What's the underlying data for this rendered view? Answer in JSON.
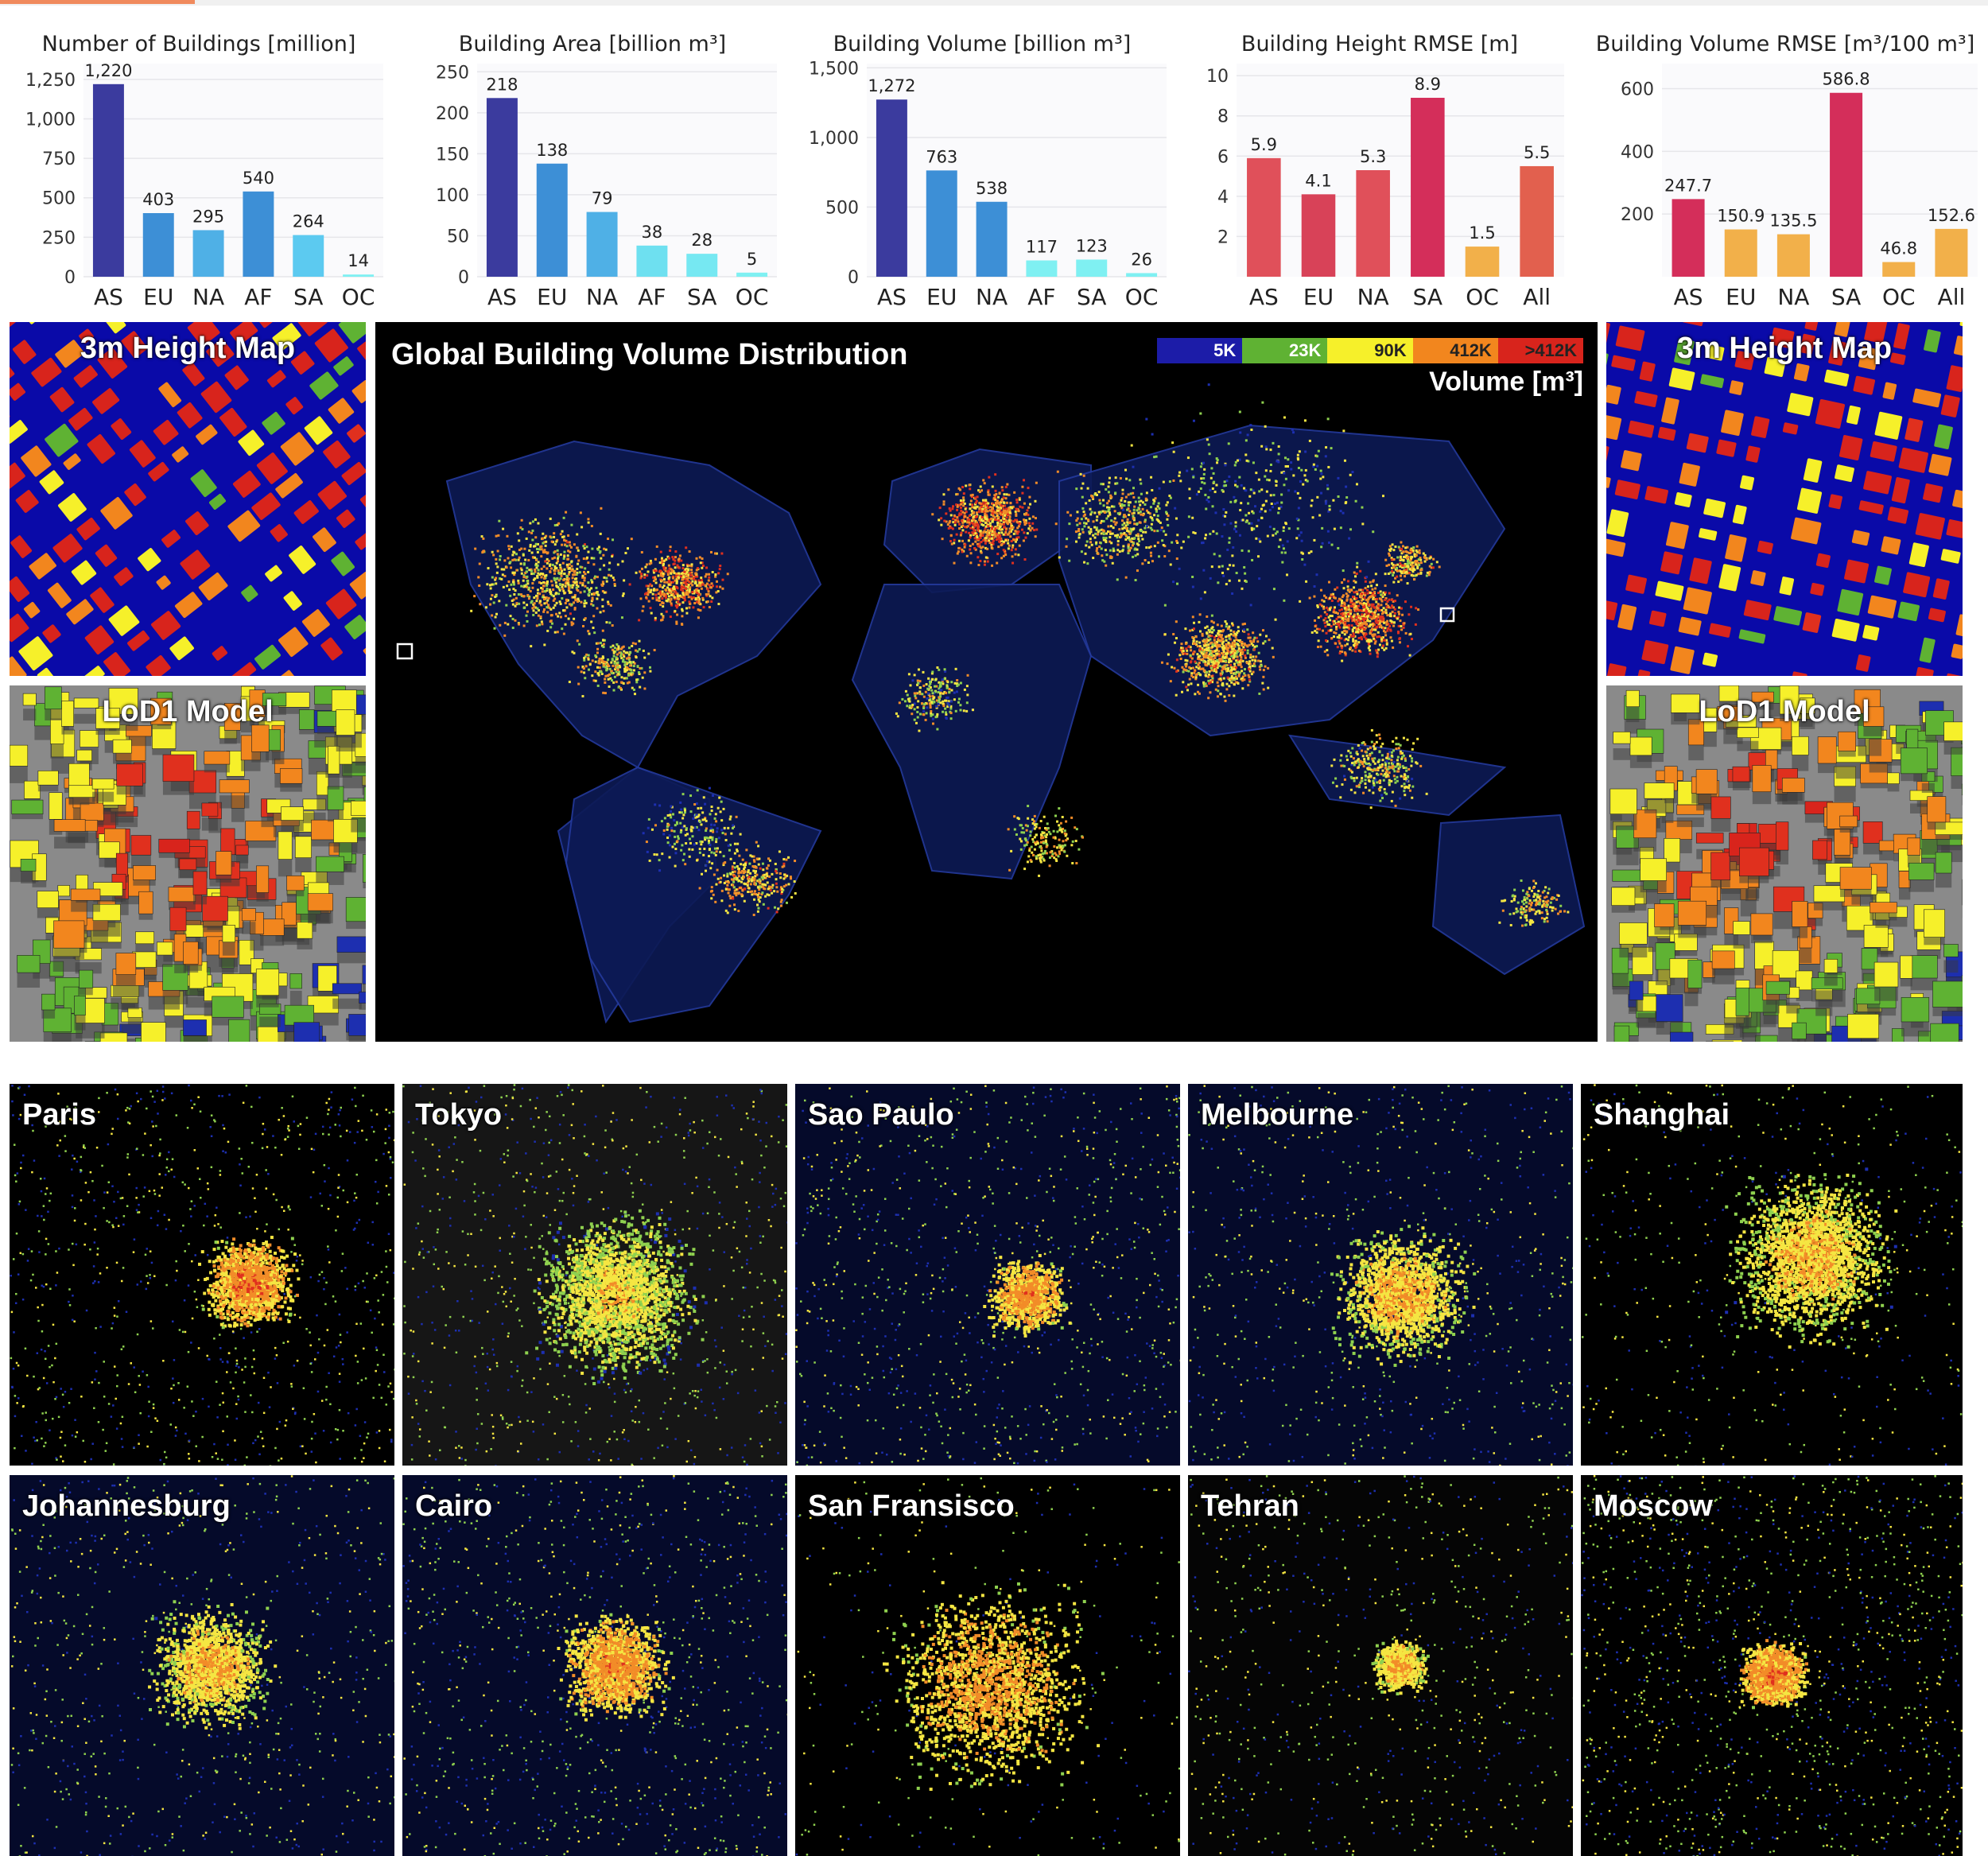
{
  "colors": {
    "dark_blue": "#3b3b9e",
    "mid_blue": "#3d8fd6",
    "light_blue": "#5ccaf0",
    "cyan": "#7ff0f2",
    "crimson": "#d42e5a",
    "red": "#e0505a",
    "orange_red": "#e2604e",
    "amber": "#f2b04a",
    "grid": "#e6e6ea",
    "plot_bg": "#fafafc"
  },
  "chart_data": [
    {
      "type": "bar",
      "title": "Number of Buildings [million]",
      "categories": [
        "AS",
        "EU",
        "NA",
        "AF",
        "SA",
        "OC"
      ],
      "values": [
        1220,
        403,
        295,
        540,
        264,
        14
      ],
      "labels": [
        "1,220",
        "403",
        "295",
        "540",
        "264",
        "14"
      ],
      "colors": [
        "#3b3b9e",
        "#3d8fd6",
        "#4fb0e6",
        "#3d8fd6",
        "#5ccaf0",
        "#7ff0f2"
      ],
      "ylim": [
        0,
        1350
      ],
      "yticks": [
        0,
        250,
        500,
        750,
        1000,
        1250
      ],
      "ytick_labels": [
        "0",
        "250",
        "500",
        "750",
        "1,000",
        "1,250"
      ]
    },
    {
      "type": "bar",
      "title": "Building Area [billion m³]",
      "categories": [
        "AS",
        "EU",
        "NA",
        "AF",
        "SA",
        "OC"
      ],
      "values": [
        218,
        138,
        79,
        38,
        28,
        5
      ],
      "labels": [
        "218",
        "138",
        "79",
        "38",
        "28",
        "5"
      ],
      "colors": [
        "#3b3b9e",
        "#3d8fd6",
        "#4fb0e6",
        "#6ee0f0",
        "#76e8f2",
        "#7ff0f2"
      ],
      "ylim": [
        0,
        260
      ],
      "yticks": [
        0,
        50,
        100,
        150,
        200,
        250
      ],
      "ytick_labels": [
        "0",
        "50",
        "100",
        "150",
        "200",
        "250"
      ]
    },
    {
      "type": "bar",
      "title": "Building Volume [billion m³]",
      "categories": [
        "AS",
        "EU",
        "NA",
        "AF",
        "SA",
        "OC"
      ],
      "values": [
        1272,
        763,
        538,
        117,
        123,
        26
      ],
      "labels": [
        "1,272",
        "763",
        "538",
        "117",
        "123",
        "26"
      ],
      "colors": [
        "#3b3b9e",
        "#3d8fd6",
        "#3d8fd6",
        "#7ff0f2",
        "#7ff0f2",
        "#7ff0f2"
      ],
      "ylim": [
        0,
        1530
      ],
      "yticks": [
        0,
        500,
        1000,
        1500
      ],
      "ytick_labels": [
        "0",
        "500",
        "1,000",
        "1,500"
      ]
    },
    {
      "type": "bar",
      "title": "Building Height RMSE [m]",
      "categories": [
        "AS",
        "EU",
        "NA",
        "SA",
        "OC",
        "All"
      ],
      "values": [
        5.9,
        4.1,
        5.3,
        8.9,
        1.5,
        5.5
      ],
      "labels": [
        "5.9",
        "4.1",
        "5.3",
        "8.9",
        "1.5",
        "5.5"
      ],
      "colors": [
        "#e0505a",
        "#d84258",
        "#e0505a",
        "#d42e5a",
        "#f2b04a",
        "#e2604e"
      ],
      "ylim": [
        0,
        10.6
      ],
      "yticks": [
        2,
        4,
        6,
        8,
        10
      ],
      "ytick_labels": [
        "2",
        "4",
        "6",
        "8",
        "10"
      ]
    },
    {
      "type": "bar",
      "title": "Building Volume RMSE [m³/100 m³]",
      "categories": [
        "AS",
        "EU",
        "NA",
        "SA",
        "OC",
        "All"
      ],
      "values": [
        247.7,
        150.9,
        135.5,
        586.8,
        46.8,
        152.6
      ],
      "labels": [
        "247.7",
        "150.9",
        "135.5",
        "586.8",
        "46.8",
        "152.6"
      ],
      "colors": [
        "#d42e5a",
        "#f2b04a",
        "#f2b04a",
        "#d42e5a",
        "#f2b04a",
        "#f2b04a"
      ],
      "ylim": [
        0,
        680
      ],
      "yticks": [
        200,
        400,
        600
      ],
      "ytick_labels": [
        "200",
        "400",
        "600"
      ]
    }
  ],
  "map": {
    "title": "Global Building Volume Distribution",
    "legend_unit": "Volume [m³]",
    "legend": [
      {
        "label": "5K",
        "color": "#1c1ca8",
        "text_color": "#ffffff"
      },
      {
        "label": "23K",
        "color": "#5fb233",
        "text_color": "#ffffff"
      },
      {
        "label": "90K",
        "color": "#f6f02a",
        "text_color": "#222222"
      },
      {
        "label": "412K",
        "color": "#f2861e",
        "text_color": "#222222"
      },
      {
        "label": ">412K",
        "color": "#d8241c",
        "text_color": "#222222"
      }
    ]
  },
  "insets": {
    "left_height_map": "3m Height Map",
    "left_lod1": "LoD1 Model",
    "right_height_map": "3m Height Map",
    "right_lod1": "LoD1 Model"
  },
  "cities": [
    "Paris",
    "Tokyo",
    "Sao Paulo",
    "Melbourne",
    "Shanghai",
    "Johannesburg",
    "Cairo",
    "San Fransisco",
    "Tehran",
    "Moscow"
  ]
}
